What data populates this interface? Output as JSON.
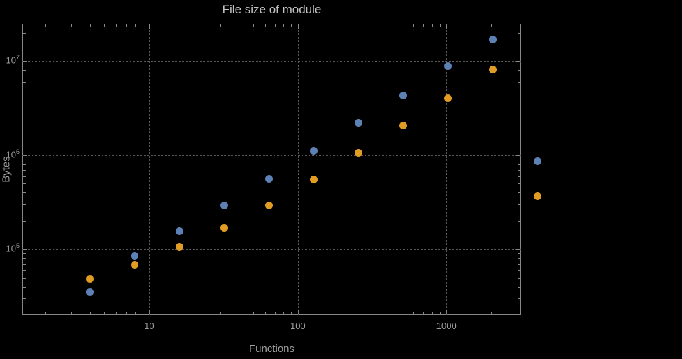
{
  "chart_data": {
    "type": "scatter",
    "title": "File size of module",
    "xlabel": "Functions",
    "ylabel": "Bytes",
    "xscale": "log",
    "yscale": "log",
    "xlim": [
      1.4,
      3180
    ],
    "ylim": [
      20000,
      25000000
    ],
    "grid": "dotted lines at decade ticks",
    "legend": "none",
    "x_ticks": [
      {
        "label": "10",
        "value": 10
      },
      {
        "label": "100",
        "value": 100
      },
      {
        "label": "1000",
        "value": 1000
      }
    ],
    "y_ticks": [
      {
        "base": "10",
        "exp": "5",
        "value": 100000
      },
      {
        "base": "10",
        "exp": "6",
        "value": 1000000
      },
      {
        "base": "10",
        "exp": "7",
        "value": 10000000
      }
    ],
    "colors": {
      "background": "#000000",
      "frame": "#878787",
      "grid": "#585858",
      "text": "#9e9e9e",
      "title": "#c3c3c3",
      "series_blue": "#5e81b5",
      "series_orange": "#e19c24"
    },
    "series": [
      {
        "name": "blue",
        "color": "#5e81b5",
        "points": [
          [
            4,
            35000
          ],
          [
            8,
            85000
          ],
          [
            16,
            155000
          ],
          [
            32,
            290000
          ],
          [
            64,
            560000
          ],
          [
            128,
            1120000
          ],
          [
            256,
            2200000
          ],
          [
            512,
            4300000
          ],
          [
            1024,
            8800000
          ],
          [
            2048,
            17000000
          ],
          [
            4096,
            860000
          ]
        ]
      },
      {
        "name": "orange",
        "color": "#e19c24",
        "points": [
          [
            4,
            48000
          ],
          [
            8,
            68000
          ],
          [
            16,
            107000
          ],
          [
            32,
            170000
          ],
          [
            64,
            290000
          ],
          [
            128,
            550000
          ],
          [
            256,
            1050000
          ],
          [
            512,
            2050000
          ],
          [
            1024,
            4050000
          ],
          [
            2048,
            8200000
          ],
          [
            4096,
            365000
          ]
        ]
      }
    ]
  }
}
